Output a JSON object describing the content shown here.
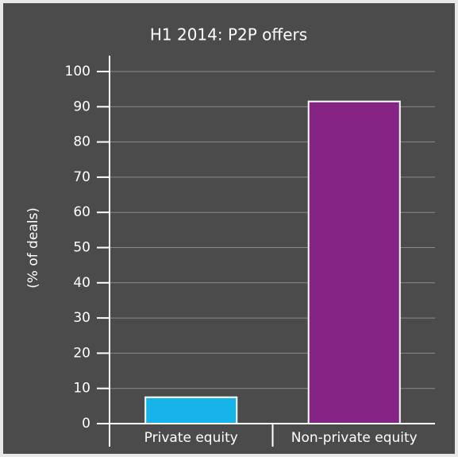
{
  "chart_data": {
    "type": "bar",
    "title": "H1 2014: P2P offers",
    "y_label": "(% of deals)",
    "categories": [
      "Private equity",
      "Non-private equity"
    ],
    "values": [
      7.5,
      91.5
    ],
    "colors": [
      "#16b4e8",
      "#852484"
    ],
    "ylim": [
      0,
      100
    ],
    "yticks": [
      0,
      10,
      20,
      30,
      40,
      50,
      60,
      70,
      80,
      90,
      100
    ],
    "grid": true
  }
}
